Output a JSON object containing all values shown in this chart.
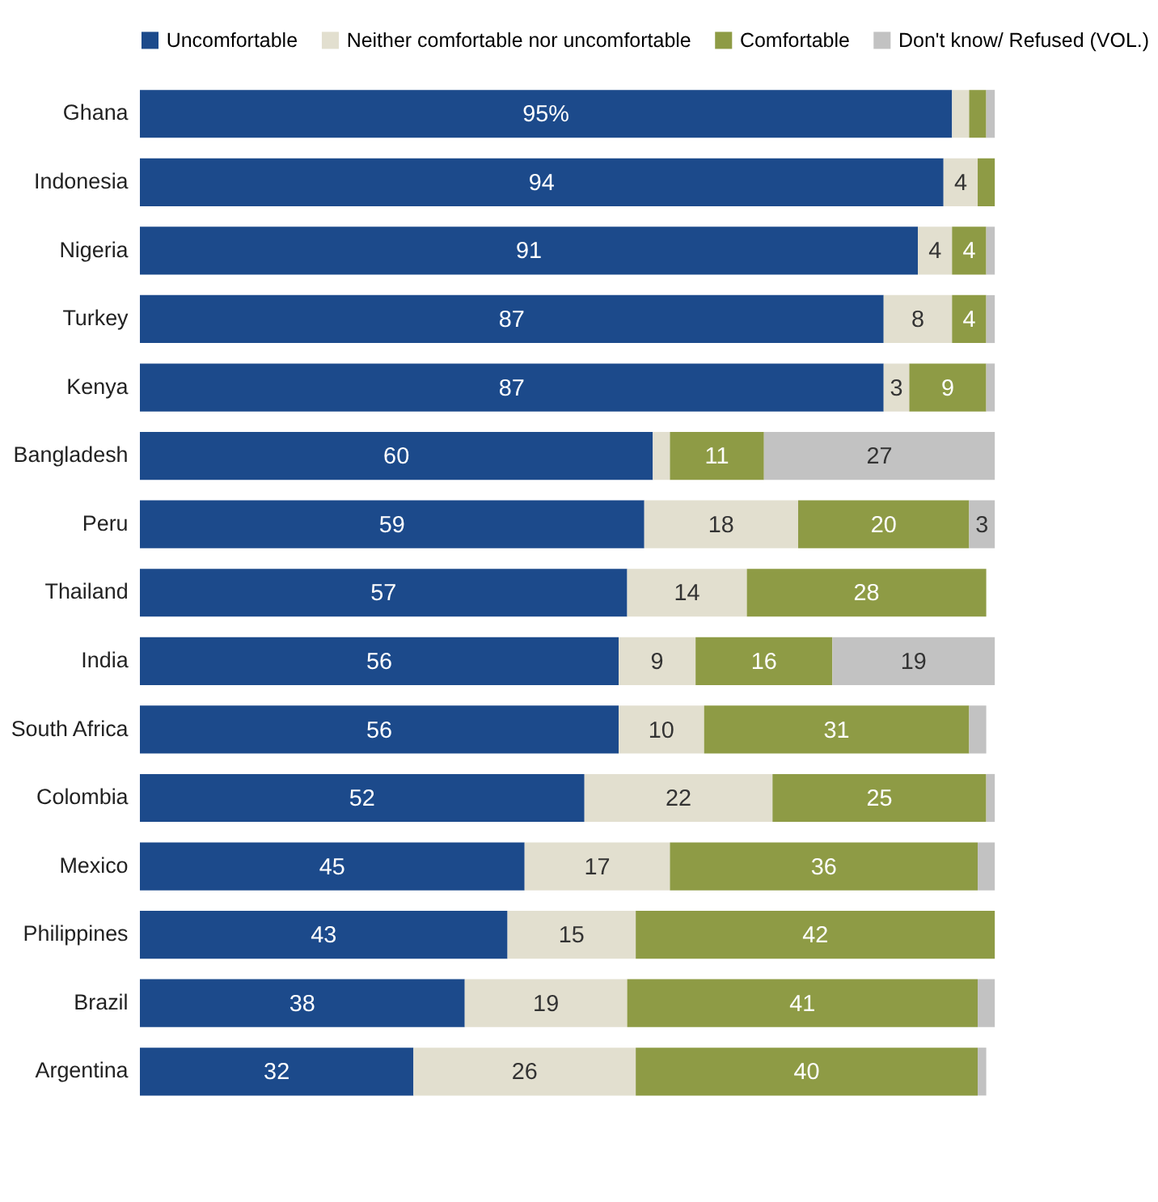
{
  "chart_data": {
    "type": "bar",
    "orientation": "horizontal",
    "stacked": true,
    "legend": "top",
    "tick_labels": "y",
    "xlim": [
      0,
      100
    ],
    "categories": [
      "Ghana",
      "Indonesia",
      "Nigeria",
      "Turkey",
      "Kenya",
      "Bangladesh",
      "Peru",
      "Thailand",
      "India",
      "South Africa",
      "Colombia",
      "Mexico",
      "Philippines",
      "Brazil",
      "Argentina"
    ],
    "series": [
      {
        "name": "Uncomfortable",
        "color": "#1c4a8b",
        "values": [
          95,
          94,
          91,
          87,
          87,
          60,
          59,
          57,
          56,
          56,
          52,
          45,
          43,
          38,
          32
        ],
        "value_labels": [
          "95%",
          "94",
          "91",
          "87",
          "87",
          "60",
          "59",
          "57",
          "56",
          "56",
          "52",
          "45",
          "43",
          "38",
          "32"
        ]
      },
      {
        "name": "Neither comfortable nor uncomfortable",
        "color": "#e2dfcf",
        "values": [
          2,
          4,
          4,
          8,
          3,
          2,
          18,
          14,
          9,
          10,
          22,
          17,
          15,
          19,
          26
        ],
        "value_labels": [
          null,
          "4",
          "4",
          "8",
          "3",
          null,
          "18",
          "14",
          "9",
          "10",
          "22",
          "17",
          "15",
          "19",
          "26"
        ]
      },
      {
        "name": "Comfortable",
        "color": "#8e9b45",
        "values": [
          2,
          2,
          4,
          4,
          9,
          11,
          20,
          28,
          16,
          31,
          25,
          36,
          42,
          41,
          40
        ],
        "value_labels": [
          null,
          null,
          "4",
          "4",
          "9",
          "11",
          "20",
          "28",
          "16",
          "31",
          "25",
          "36",
          "42",
          "41",
          "40"
        ]
      },
      {
        "name": "Don't know/ Refused (VOL.)",
        "color": "#c2c2c2",
        "values": [
          1,
          0,
          1,
          1,
          1,
          27,
          3,
          0,
          19,
          2,
          1,
          2,
          0,
          2,
          1
        ],
        "value_labels": [
          null,
          null,
          null,
          null,
          null,
          "27",
          "3",
          null,
          "19",
          null,
          null,
          null,
          null,
          null,
          null
        ]
      }
    ]
  }
}
